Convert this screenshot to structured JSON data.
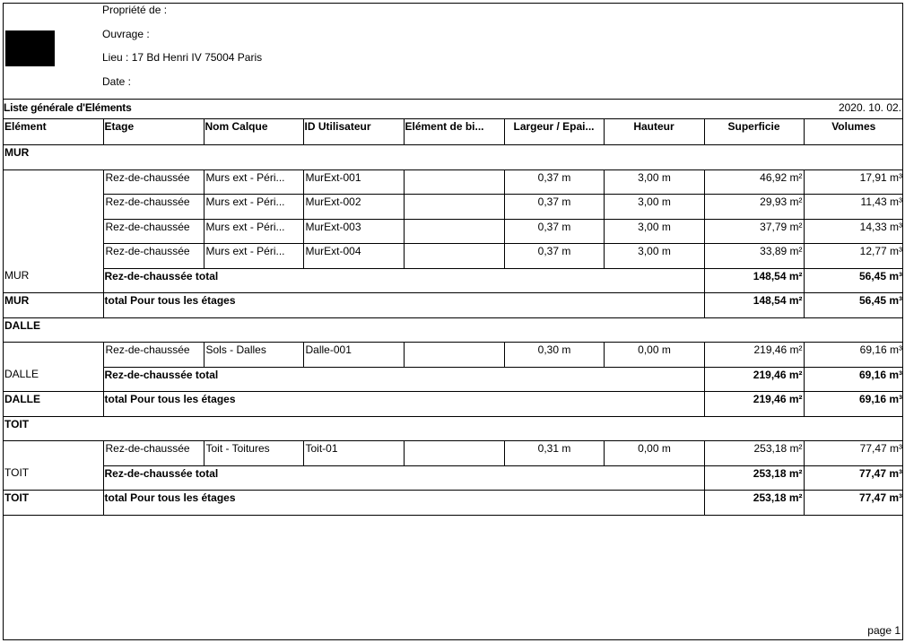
{
  "header": {
    "owner": "Propriété de :",
    "work": "Ouvrage :",
    "place": "Lieu : 17 Bd Henri IV 75004 Paris",
    "date": "Date :"
  },
  "report": {
    "title": "Liste générale d'Eléments",
    "date": "2020. 10. 02."
  },
  "columns": [
    "Elément",
    "Etage",
    "Nom Calque",
    "ID Utilisateur",
    "Elément de bi...",
    "Largeur / Epai...",
    "Hauteur",
    "Superficie",
    "Volumes"
  ],
  "groups": [
    {
      "name": "MUR",
      "items": [
        [
          "Rez-de-chaussée",
          "Murs ext - Péri...",
          "MurExt-001",
          "",
          "0,37 m",
          "3,00 m",
          "46,92 m²",
          "17,91 m³"
        ],
        [
          "Rez-de-chaussée",
          "Murs ext - Péri...",
          "MurExt-002",
          "",
          "0,37 m",
          "3,00 m",
          "29,93 m²",
          "11,43 m³"
        ],
        [
          "Rez-de-chaussée",
          "Murs ext - Péri...",
          "MurExt-003",
          "",
          "0,37 m",
          "3,00 m",
          "37,79 m²",
          "14,33 m³"
        ],
        [
          "Rez-de-chaussée",
          "Murs ext - Péri...",
          "MurExt-004",
          "",
          "0,37 m",
          "3,00 m",
          "33,89 m²",
          "12,77 m³"
        ]
      ],
      "subtotal": {
        "label": "Rez-de-chaussée total",
        "area": "148,54 m²",
        "volume": "56,45 m³"
      },
      "total": {
        "label": "total Pour tous les étages",
        "area": "148,54 m²",
        "volume": "56,45 m³"
      }
    },
    {
      "name": "DALLE",
      "items": [
        [
          "Rez-de-chaussée",
          "Sols - Dalles",
          "Dalle-001",
          "",
          "0,30 m",
          "0,00 m",
          "219,46 m²",
          "69,16 m³"
        ]
      ],
      "subtotal": {
        "label": "Rez-de-chaussée total",
        "area": "219,46 m²",
        "volume": "69,16 m³"
      },
      "total": {
        "label": "total Pour tous les étages",
        "area": "219,46 m²",
        "volume": "69,16 m³"
      }
    },
    {
      "name": "TOIT",
      "items": [
        [
          "Rez-de-chaussée",
          "Toit - Toitures",
          "Toit-01",
          "",
          "0,31 m",
          "0,00 m",
          "253,18 m²",
          "77,47 m³"
        ]
      ],
      "subtotal": {
        "label": "Rez-de-chaussée total",
        "area": "253,18 m²",
        "volume": "77,47 m³"
      },
      "total": {
        "label": "total Pour tous les étages",
        "area": "253,18 m²",
        "volume": "77,47 m³"
      }
    }
  ],
  "footer": {
    "page": "page   1"
  }
}
